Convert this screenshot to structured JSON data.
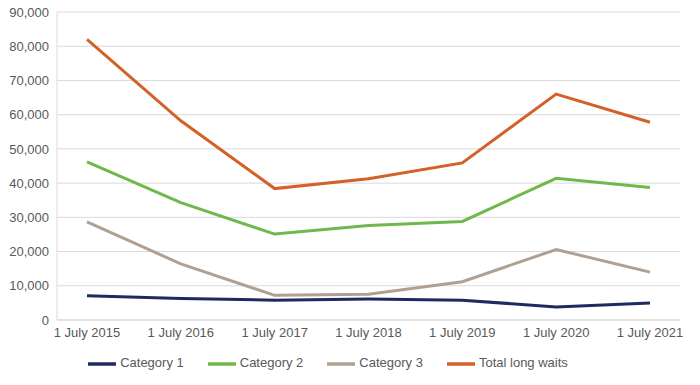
{
  "chart_data": {
    "type": "line",
    "categories": [
      "1 July 2015",
      "1 July 2016",
      "1 July 2017",
      "1 July 2018",
      "1 July 2019",
      "1 July 2020",
      "1 July 2021"
    ],
    "series": [
      {
        "name": "Category 1",
        "color": "#1f2a5e",
        "values": [
          7100,
          6300,
          5800,
          6100,
          5800,
          3800,
          5000
        ]
      },
      {
        "name": "Category 2",
        "color": "#70b84c",
        "values": [
          46200,
          34300,
          25100,
          27600,
          28800,
          41400,
          38700
        ]
      },
      {
        "name": "Category 3",
        "color": "#b0a092",
        "values": [
          28700,
          16400,
          7200,
          7500,
          11200,
          20600,
          14000
        ]
      },
      {
        "name": "Total long waits",
        "color": "#d4612a",
        "values": [
          82000,
          58200,
          38400,
          41300,
          45900,
          66000,
          57800
        ]
      }
    ],
    "ylim": [
      0,
      90000
    ],
    "yticks": [
      0,
      {
        "value": 10000,
        "label": "10,000"
      },
      {
        "value": 20000,
        "label": "20,000"
      },
      {
        "value": 30000,
        "label": "30,000"
      },
      {
        "value": 40000,
        "label": "40,000"
      },
      {
        "value": 50000,
        "label": "50,000"
      },
      {
        "value": 60000,
        "label": "60,000"
      },
      {
        "value": 70000,
        "label": "70,000"
      },
      {
        "value": 80000,
        "label": "80,000"
      },
      {
        "value": 90000,
        "label": "90,000"
      }
    ],
    "grid": true,
    "legend": "bottom"
  }
}
